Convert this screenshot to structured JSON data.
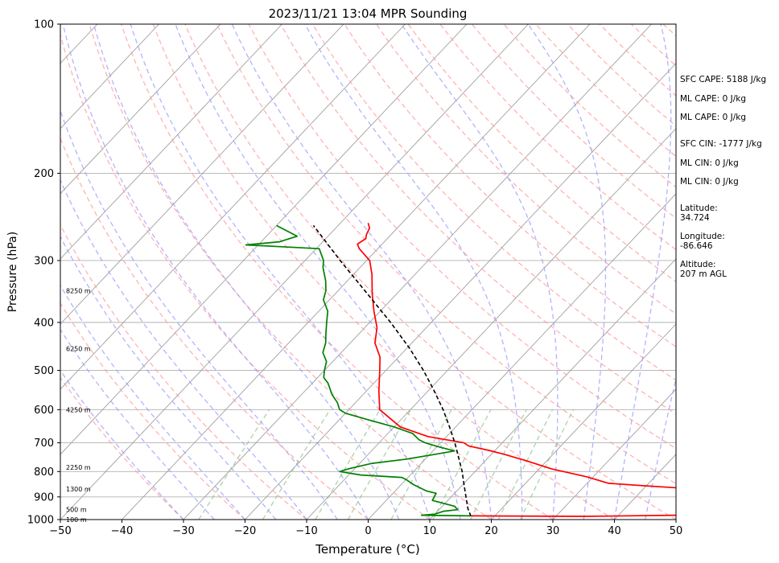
{
  "chart_data": {
    "type": "skew-t",
    "title": "2023/11/21 13:04 MPR Sounding",
    "xlabel": "Temperature (°C)",
    "ylabel": "Pressure (hPa)",
    "xlim": [
      -50,
      50
    ],
    "ylim": [
      1000,
      100
    ],
    "y_scale": "log",
    "grid": true,
    "x_ticks": [
      -50,
      -40,
      -30,
      -20,
      -10,
      0,
      10,
      20,
      30,
      40,
      50
    ],
    "x_tick_labels": [
      "−50",
      "−40",
      "−30",
      "−20",
      "−10",
      "0",
      "10",
      "20",
      "30",
      "40",
      "50"
    ],
    "y_ticks": [
      1000,
      900,
      800,
      700,
      600,
      500,
      400,
      300,
      200,
      100
    ],
    "y_tick_labels": [
      "1000",
      "900",
      "800",
      "700",
      "600",
      "500",
      "400",
      "300",
      "200",
      "100"
    ],
    "height_labels": [
      {
        "pressure": 1000,
        "text": "100 m"
      },
      {
        "pressure": 955,
        "text": "500 m"
      },
      {
        "pressure": 868,
        "text": "1300 m"
      },
      {
        "pressure": 785,
        "text": "2250 m"
      },
      {
        "pressure": 600,
        "text": "4250 m"
      },
      {
        "pressure": 452,
        "text": "6250 m"
      },
      {
        "pressure": 345,
        "text": "8250 m"
      }
    ],
    "series": [
      {
        "kind": "temperature",
        "color": "#ff0000",
        "points": [
          [
            983,
            16.2
          ],
          [
            985,
            34.5
          ],
          [
            980,
            50
          ],
          [
            870,
            50
          ],
          [
            855,
            40
          ],
          [
            845,
            33.5
          ],
          [
            820,
            29
          ],
          [
            790,
            22
          ],
          [
            760,
            16.5
          ],
          [
            738,
            12
          ],
          [
            725,
            9
          ],
          [
            710,
            5
          ],
          [
            700,
            3.8
          ],
          [
            680,
            -3
          ],
          [
            650,
            -9
          ],
          [
            600,
            -15
          ],
          [
            550,
            -18
          ],
          [
            500,
            -21
          ],
          [
            470,
            -23
          ],
          [
            440,
            -26
          ],
          [
            410,
            -28
          ],
          [
            380,
            -31
          ],
          [
            350,
            -34
          ],
          [
            320,
            -37
          ],
          [
            300,
            -39.5
          ],
          [
            284,
            -43
          ],
          [
            278,
            -44
          ],
          [
            271,
            -43.5
          ],
          [
            266,
            -44
          ],
          [
            258,
            -44.5
          ],
          [
            252,
            -45.5
          ]
        ]
      },
      {
        "kind": "dewpoint",
        "color": "#008000",
        "points": [
          [
            983,
            16
          ],
          [
            980,
            8
          ],
          [
            975,
            10
          ],
          [
            962,
            11
          ],
          [
            955,
            13
          ],
          [
            940,
            12
          ],
          [
            915,
            7.5
          ],
          [
            885,
            7
          ],
          [
            875,
            5
          ],
          [
            850,
            2
          ],
          [
            830,
            0
          ],
          [
            822,
            -1
          ],
          [
            813,
            -8
          ],
          [
            800,
            -12
          ],
          [
            790,
            -11
          ],
          [
            770,
            -8
          ],
          [
            755,
            -3
          ],
          [
            742,
            0
          ],
          [
            727,
            3.5
          ],
          [
            712,
            0
          ],
          [
            700,
            -2.5
          ],
          [
            690,
            -4
          ],
          [
            670,
            -6
          ],
          [
            650,
            -10
          ],
          [
            630,
            -15
          ],
          [
            610,
            -20
          ],
          [
            600,
            -21.5
          ],
          [
            580,
            -23
          ],
          [
            560,
            -25
          ],
          [
            530,
            -27.5
          ],
          [
            517,
            -29
          ],
          [
            500,
            -30
          ],
          [
            480,
            -31
          ],
          [
            460,
            -33
          ],
          [
            440,
            -34
          ],
          [
            420,
            -35.5
          ],
          [
            400,
            -37
          ],
          [
            380,
            -38.5
          ],
          [
            360,
            -41
          ],
          [
            345,
            -42
          ],
          [
            330,
            -43.5
          ],
          [
            310,
            -46
          ],
          [
            300,
            -47
          ],
          [
            284,
            -49.5
          ],
          [
            279,
            -62
          ],
          [
            275,
            -57
          ],
          [
            268,
            -55
          ],
          [
            255,
            -60
          ]
        ]
      },
      {
        "kind": "parcel",
        "color": "#000000",
        "points": [
          [
            985,
            16.2
          ],
          [
            950,
            14.5
          ],
          [
            900,
            12.4
          ],
          [
            850,
            10.2
          ],
          [
            800,
            7.9
          ],
          [
            750,
            5.2
          ],
          [
            700,
            2.3
          ],
          [
            650,
            -1
          ],
          [
            600,
            -4.7
          ],
          [
            550,
            -9
          ],
          [
            500,
            -13.9
          ],
          [
            450,
            -19.7
          ],
          [
            400,
            -26.6
          ],
          [
            350,
            -34.8
          ],
          [
            300,
            -44.3
          ],
          [
            255,
            -54
          ]
        ]
      }
    ],
    "annotations": [
      "SFC CAPE: 5188 J/kg",
      "ML CAPE: 0 J/kg",
      "ML CAPE: 0 J/kg",
      "SFC CIN: -1777 J/kg",
      "ML CIN: 0 J/kg",
      "ML CIN: 0 J/kg",
      "Latitude:",
      "34.724",
      "Longitude:",
      "-86.646",
      "Altitude:",
      "207 m AGL"
    ],
    "reference_lines": {
      "isotherm_color": "#a0a0a0",
      "dry_adiabat_color": "#ff9999",
      "moist_adiabat_color": "#9999ff",
      "mixing_ratio_color": "#88c088"
    }
  }
}
